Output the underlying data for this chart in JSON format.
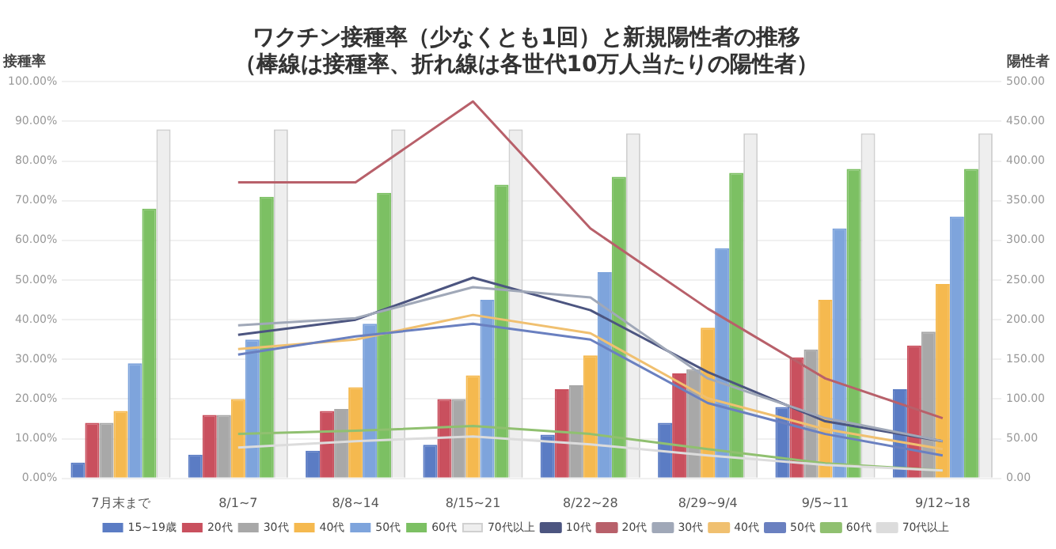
{
  "chart_data": {
    "type": "bar",
    "title": "ワクチン接種率（少なくとも1回）と新規陽性者の推移",
    "subtitle": "（棒線は接種率、折れ線は各世代10万人当たりの陽性者）",
    "ylabel": "接種率",
    "y2label": "陽性者",
    "categories": [
      "7月末まで",
      "8/1~7",
      "8/8~14",
      "8/15~21",
      "8/22~28",
      "8/29~9/4",
      "9/5~11",
      "9/12~18"
    ],
    "series": [
      {
        "name": "15~19歳",
        "color": "#5b7cc4",
        "values": [
          4,
          6,
          7,
          8.5,
          11,
          14,
          18,
          22.5
        ]
      },
      {
        "name": "20代",
        "color": "#c9505e",
        "values": [
          14,
          16,
          17,
          20,
          22.5,
          26.5,
          30.5,
          33.5
        ]
      },
      {
        "name": "30代",
        "color": "#a8a8a8",
        "values": [
          14,
          16,
          17.5,
          20,
          23.5,
          27.5,
          32.5,
          37
        ]
      },
      {
        "name": "40代",
        "color": "#f5b94f",
        "values": [
          17,
          20,
          23,
          26,
          31,
          38,
          45,
          49
        ]
      },
      {
        "name": "50代",
        "color": "#7ea4dc",
        "values": [
          29,
          35,
          39,
          45,
          52,
          58,
          63,
          66
        ]
      },
      {
        "name": "60代",
        "color": "#7cc063",
        "values": [
          68,
          71,
          72,
          74,
          76,
          77,
          78,
          78
        ]
      },
      {
        "name": "70代以上",
        "color": "#eeeeee",
        "values": [
          88,
          88,
          88,
          88,
          87,
          87,
          87,
          87
        ]
      },
      {
        "name": "10代",
        "type": "line",
        "axis": "y2",
        "color": "#4c5580",
        "values": [
          null,
          181,
          200,
          253,
          212,
          134,
          72,
          47
        ]
      },
      {
        "name": "20代",
        "type": "line",
        "axis": "y2",
        "color": "#b8606a",
        "values": [
          null,
          373,
          373,
          475,
          315,
          214,
          126,
          76
        ]
      },
      {
        "name": "30代",
        "type": "line",
        "axis": "y2",
        "color": "#a0a8b8",
        "values": [
          null,
          193,
          202,
          241,
          228,
          126,
          76,
          47
        ]
      },
      {
        "name": "40代",
        "type": "line",
        "axis": "y2",
        "color": "#f0c070",
        "values": [
          null,
          163,
          175,
          206,
          183,
          101,
          62,
          37
        ]
      },
      {
        "name": "50代",
        "type": "line",
        "axis": "y2",
        "color": "#6a80c0",
        "values": [
          null,
          156,
          179,
          195,
          175,
          95,
          56,
          29
        ]
      },
      {
        "name": "60代",
        "type": "line",
        "axis": "y2",
        "color": "#90c070",
        "values": [
          null,
          56,
          60,
          66,
          56,
          37,
          19,
          10
        ]
      },
      {
        "name": "70代以上",
        "type": "line",
        "axis": "y2",
        "color": "#dcdcdc",
        "values": [
          null,
          39,
          47,
          53,
          43,
          29,
          17,
          10
        ]
      }
    ],
    "ylim": [
      0,
      100
    ],
    "yticks": [
      {
        "value": 0,
        "label": "0.00%"
      },
      {
        "value": 10,
        "label": "10.00%"
      },
      {
        "value": 20,
        "label": "20.00%"
      },
      {
        "value": 30,
        "label": "30.00%"
      },
      {
        "value": 40,
        "label": "40.00%"
      },
      {
        "value": 50,
        "label": "50.00%"
      },
      {
        "value": 60,
        "label": "60.00%"
      },
      {
        "value": 70,
        "label": "70.00%"
      },
      {
        "value": 80,
        "label": "80.00%"
      },
      {
        "value": 90,
        "label": "90.00%"
      },
      {
        "value": 100,
        "label": "100.00%"
      }
    ],
    "y2lim": [
      0,
      500
    ],
    "y2ticks": [
      {
        "value": 0,
        "label": "0.00"
      },
      {
        "value": 50,
        "label": "50.00"
      },
      {
        "value": 100,
        "label": "100.00"
      },
      {
        "value": 150,
        "label": "150.00"
      },
      {
        "value": 200,
        "label": "200.00"
      },
      {
        "value": 250,
        "label": "250.00"
      },
      {
        "value": 300,
        "label": "300.00"
      },
      {
        "value": 350,
        "label": "350.00"
      },
      {
        "value": 400,
        "label": "400.00"
      },
      {
        "value": 450,
        "label": "450.00"
      },
      {
        "value": 500,
        "label": "500.00"
      }
    ],
    "grid": "y",
    "legend": "bottom",
    "marker": "none",
    "line_style": "solid"
  }
}
